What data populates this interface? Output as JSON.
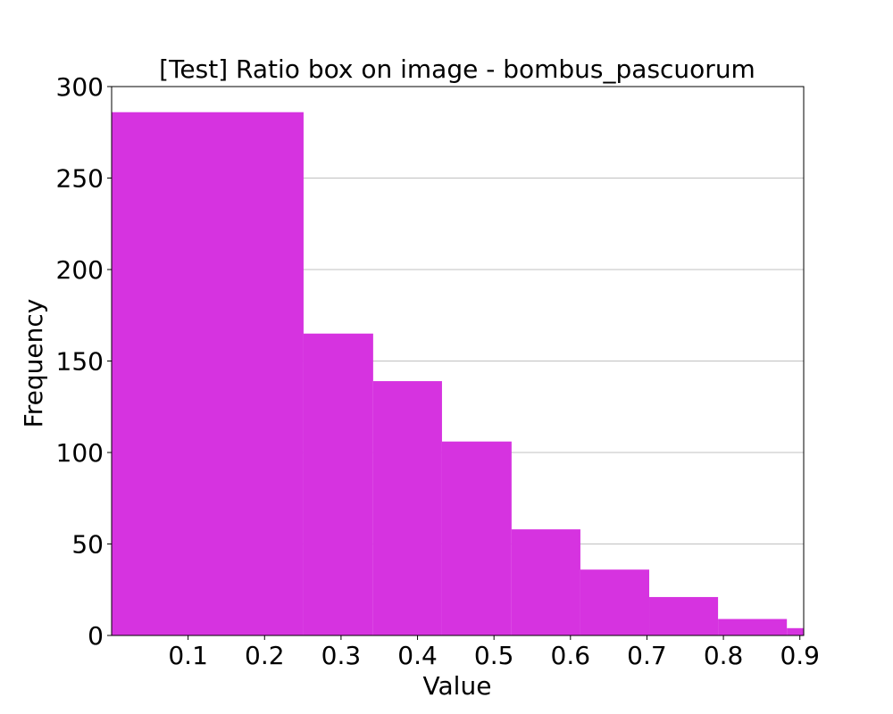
{
  "chart_data": {
    "type": "bar",
    "title": "[Test] Ratio box on image - bombus_pascuorum",
    "xlabel": "Value",
    "ylabel": "Frequency",
    "xlim": [
      0.0,
      0.905
    ],
    "ylim": [
      0,
      300
    ],
    "xticks": [
      0.1,
      0.2,
      0.3,
      0.4,
      0.5,
      0.6,
      0.7,
      0.8,
      0.9
    ],
    "xtick_labels": [
      "0.1",
      "0.2",
      "0.3",
      "0.4",
      "0.5",
      "0.6",
      "0.7",
      "0.8",
      "0.9"
    ],
    "yticks": [
      0,
      50,
      100,
      150,
      200,
      250,
      300
    ],
    "ytick_labels": [
      "0",
      "50",
      "100",
      "150",
      "200",
      "250",
      "300"
    ],
    "grid": "y",
    "bar_color": "#d633e0",
    "bins": [
      {
        "x0": 0.0,
        "x1": 0.251,
        "value": 286
      },
      {
        "x0": 0.251,
        "x1": 0.342,
        "value": 165
      },
      {
        "x0": 0.342,
        "x1": 0.432,
        "value": 139
      },
      {
        "x0": 0.432,
        "x1": 0.523,
        "value": 106
      },
      {
        "x0": 0.523,
        "x1": 0.613,
        "value": 58
      },
      {
        "x0": 0.613,
        "x1": 0.703,
        "value": 36
      },
      {
        "x0": 0.703,
        "x1": 0.793,
        "value": 21
      },
      {
        "x0": 0.793,
        "x1": 0.883,
        "value": 9
      },
      {
        "x0": 0.883,
        "x1": 0.905,
        "value": 4
      }
    ]
  }
}
